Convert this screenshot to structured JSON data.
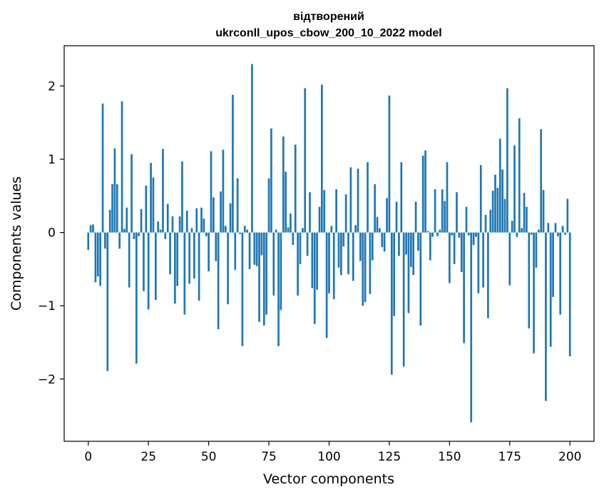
{
  "chart_data": {
    "type": "bar",
    "title_line1": "відтворений",
    "title_line2": "ukrconll_upos_cbow_200_10_2022 model",
    "xlabel": "Vector components",
    "ylabel": "Components values",
    "xlim": [
      -10,
      210
    ],
    "ylim": [
      -2.85,
      2.55
    ],
    "xticks": [
      0,
      25,
      50,
      75,
      100,
      125,
      150,
      175,
      200
    ],
    "xtick_labels": [
      "0",
      "25",
      "50",
      "75",
      "100",
      "125",
      "150",
      "175",
      "200"
    ],
    "yticks": [
      -2,
      -1,
      0,
      1,
      2
    ],
    "ytick_labels": [
      "−2",
      "−1",
      "0",
      "1",
      "2"
    ],
    "bar_color": "#1f77b4",
    "grid": false,
    "values": [
      -0.24,
      0.1,
      0.11,
      -0.68,
      -0.6,
      -0.73,
      1.76,
      -0.22,
      -1.89,
      0.31,
      0.66,
      1.15,
      0.66,
      -0.22,
      1.79,
      0.05,
      0.34,
      -0.75,
      1.07,
      -0.09,
      -1.79,
      -0.05,
      0.32,
      -0.8,
      0.64,
      -1.05,
      0.95,
      0.75,
      -0.92,
      0.15,
      0.04,
      1.14,
      -0.09,
      0.39,
      -0.57,
      0.22,
      -0.97,
      -0.73,
      0.22,
      0.97,
      -1.12,
      0.3,
      -0.7,
      0.06,
      -0.63,
      0.33,
      -0.93,
      0.34,
      0.19,
      -0.05,
      -0.53,
      1.11,
      0.48,
      -0.39,
      -1.32,
      0.56,
      1.13,
      0.09,
      -0.98,
      0.4,
      1.88,
      -0.51,
      0.74,
      -0.02,
      -1.55,
      0.09,
      0.04,
      -0.5,
      2.3,
      -0.44,
      -0.46,
      -1.22,
      -0.31,
      -1.27,
      -1.12,
      0.74,
      1.42,
      -0.86,
      0.04,
      -1.55,
      -1.06,
      1.31,
      0.83,
      0.07,
      0.26,
      -0.17,
      1.2,
      -0.86,
      -0.43,
      0.06,
      1.97,
      -0.32,
      0.55,
      -0.76,
      -1.25,
      -0.78,
      0.35,
      2.02,
      0.58,
      -1.44,
      -0.83,
      0.09,
      -0.91,
      0.59,
      -0.48,
      -0.58,
      -0.19,
      0.52,
      -0.57,
      0.89,
      -0.66,
      0.1,
      0.87,
      -0.39,
      -1.0,
      -0.95,
      0.96,
      -0.84,
      -0.38,
      0.66,
      0.21,
      0.06,
      -0.2,
      -0.26,
      0.47,
      1.87,
      -1.94,
      -1.14,
      0.42,
      -0.32,
      0.96,
      -1.83,
      -0.3,
      -1.1,
      -0.47,
      -0.58,
      0.42,
      -0.25,
      -1.27,
      1.05,
      1.12,
      0.02,
      -0.38,
      -0.06,
      0.59,
      -0.05,
      0.04,
      0.59,
      0.43,
      0.96,
      -0.69,
      -0.04,
      -0.43,
      0.55,
      -0.07,
      -0.54,
      -1.51,
      0.35,
      -0.04,
      -2.59,
      -0.17,
      -0.06,
      -0.83,
      0.92,
      -0.75,
      0.24,
      -1.17,
      0.31,
      0.57,
      0.79,
      0.61,
      1.28,
      0.86,
      0.46,
      1.97,
      -0.72,
      0.16,
      1.19,
      -0.06,
      1.56,
      0.06,
      0.54,
      0.35,
      -1.31,
      -0.03,
      -1.65,
      -0.48,
      0.04,
      1.41,
      0.58,
      -2.3,
      0.13,
      -1.56,
      -0.88,
      0.13,
      -0.05,
      -1.12,
      0.09,
      -0.03,
      0.46,
      -1.69
    ]
  }
}
